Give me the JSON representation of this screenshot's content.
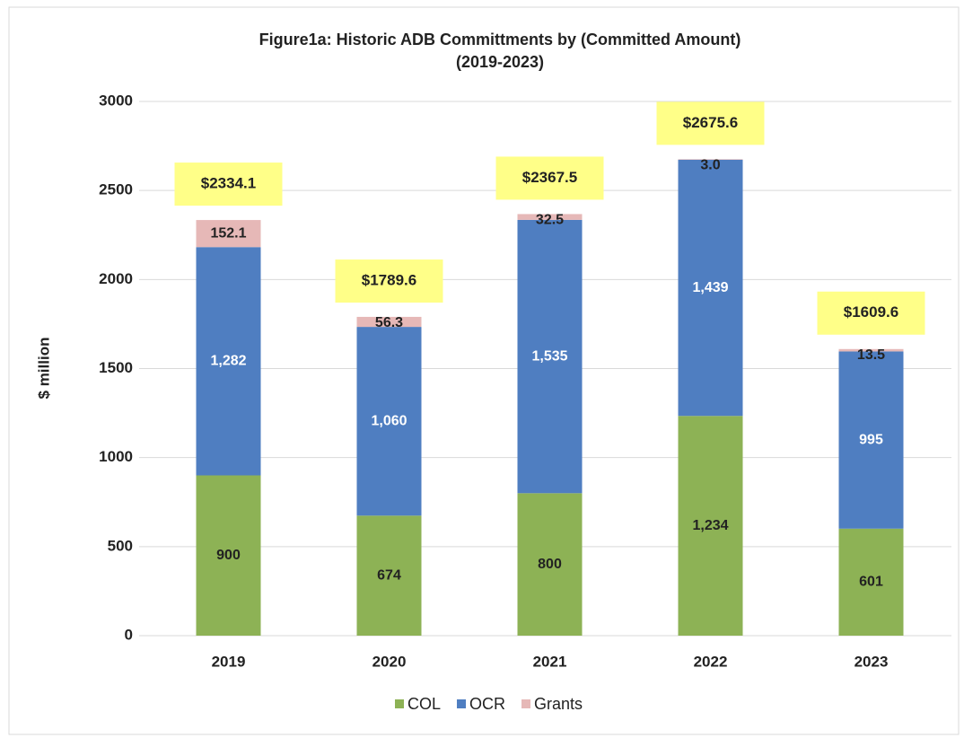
{
  "chart_data": {
    "type": "stacked_bar",
    "title": "Figure1a: Historic ADB Committments by (Committed Amount)",
    "subtitle": "(2019-2023)",
    "y_label": "$ million",
    "categories": [
      "2019",
      "2020",
      "2021",
      "2022",
      "2023"
    ],
    "series": [
      {
        "name": "COL",
        "color": "#8db255",
        "values": [
          900,
          674,
          800,
          1234,
          601
        ],
        "value_labels": [
          "900",
          "674",
          "800",
          "1,234",
          "601"
        ]
      },
      {
        "name": "OCR",
        "color": "#4f7ec1",
        "values": [
          1282,
          1060,
          1535,
          1439,
          995
        ],
        "value_labels": [
          "1,282",
          "1,060",
          "1,535",
          "1,439",
          "995"
        ]
      },
      {
        "name": "Grants",
        "color": "#e6b8b7",
        "values": [
          152.1,
          56.3,
          32.5,
          3.0,
          13.5
        ],
        "value_labels": [
          "152.1",
          "56.3",
          "32.5",
          "3.0",
          "13.5"
        ]
      }
    ],
    "totals": [
      2334.1,
      1789.6,
      2367.5,
      2675.6,
      1609.6
    ],
    "total_labels": [
      "$2334.1",
      "$1789.6",
      "$2367.5",
      "$2675.6",
      "$1609.6"
    ],
    "ylim": [
      0,
      3000
    ],
    "yticks": [
      0,
      500,
      1000,
      1500,
      2000,
      2500,
      3000
    ],
    "grid": true,
    "legend": "bottom"
  }
}
